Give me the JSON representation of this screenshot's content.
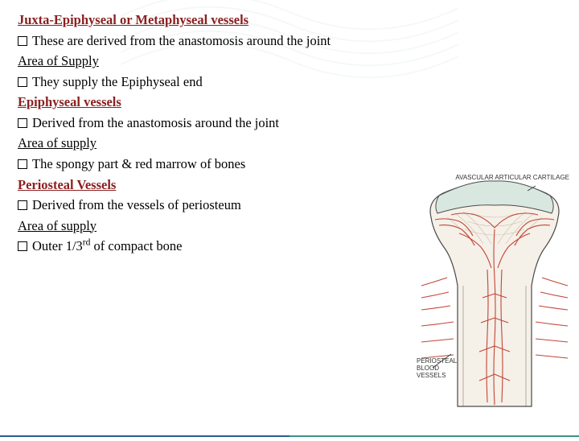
{
  "colors": {
    "heading": "#8b2020",
    "text": "#000000",
    "footer_blue": "#2b5f8a",
    "footer_teal": "#3a9289",
    "watermark": "#7aa8b8"
  },
  "sections": [
    {
      "type": "heading",
      "text": "Juxta-Epiphyseal or Metaphyseal vessels"
    },
    {
      "type": "bullet",
      "text": "These are derived from the anastomosis around the joint"
    },
    {
      "type": "subheading",
      "text": "Area of Supply"
    },
    {
      "type": "bullet",
      "text": "They supply the Epiphyseal end"
    },
    {
      "type": "heading",
      "text": " Epiphyseal vessels"
    },
    {
      "type": "bullet",
      "text": "Derived from the anastomosis around the joint"
    },
    {
      "type": "subheading",
      "text": "Area of supply"
    },
    {
      "type": "bullet",
      "text": "The spongy part & red marrow of bones"
    },
    {
      "type": "heading",
      "text": " Periosteal Vessels"
    },
    {
      "type": "bullet",
      "text": "Derived from the vessels of periosteum"
    },
    {
      "type": "subheading",
      "text": "Area of supply"
    },
    {
      "type": "bullet_html",
      "text": "Outer 1/3",
      "suffix_sup": "rd",
      "suffix": " of compact bone"
    }
  ],
  "figure": {
    "label_top": "AVASCULAR ARTICULAR CARTILAGE",
    "label_bottom": "PERIOSTEAL\nBLOOD\nVESSELS",
    "cartilage_color": "#d8e8e0",
    "bone_color": "#f5f0e8",
    "vessel_color": "#c44536",
    "outline_color": "#4a4a4a"
  },
  "font": {
    "body_size": 16.5,
    "line_height": 1.55
  }
}
